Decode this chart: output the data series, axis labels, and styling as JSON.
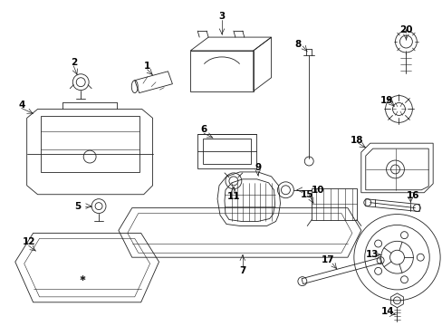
{
  "background_color": "#ffffff",
  "line_color": "#222222",
  "text_color": "#000000",
  "figsize": [
    4.89,
    3.6
  ],
  "dpi": 100,
  "label_fontsize": 7.5
}
